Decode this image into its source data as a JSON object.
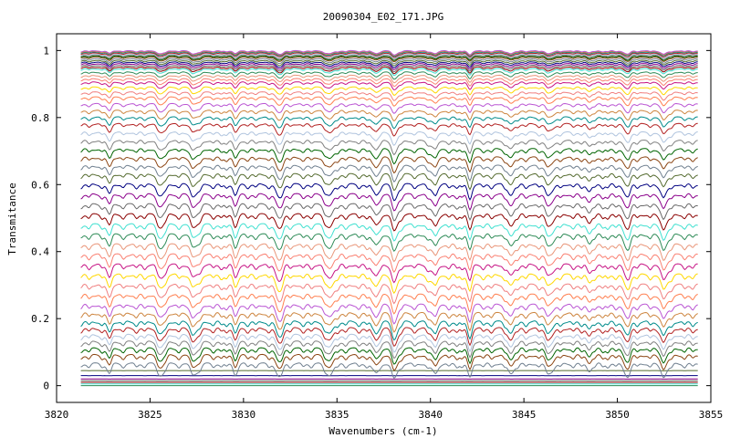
{
  "chart_data": {
    "type": "line",
    "title": "20090304_E02_171.JPG",
    "xlabel": "Wavenumbers (cm-1)",
    "ylabel": "Transmitance",
    "xlim": [
      3820,
      3855
    ],
    "ylim": [
      -0.05,
      1.05
    ],
    "x_ticks": [
      3820,
      3825,
      3830,
      3835,
      3840,
      3845,
      3850,
      3855
    ],
    "y_ticks": [
      0,
      0.2,
      0.4,
      0.6,
      0.8,
      1
    ],
    "grid": false,
    "legend": "none",
    "x_data_range": [
      3821.3,
      3854.3
    ],
    "absorption_lines": [
      3822.8,
      3825.6,
      3827.4,
      3829.6,
      3831.9,
      3834.6,
      3837.1,
      3838.1,
      3840.2,
      3842.1,
      3844.3,
      3846.4,
      3848.5,
      3850.5,
      3852.5
    ],
    "series_levels": [
      0.0,
      0.005,
      0.01,
      0.015,
      0.02,
      0.03,
      0.045,
      0.065,
      0.09,
      0.11,
      0.13,
      0.15,
      0.17,
      0.19,
      0.215,
      0.24,
      0.27,
      0.3,
      0.33,
      0.36,
      0.39,
      0.42,
      0.45,
      0.48,
      0.51,
      0.54,
      0.57,
      0.6,
      0.63,
      0.655,
      0.68,
      0.705,
      0.73,
      0.755,
      0.78,
      0.8,
      0.82,
      0.84,
      0.86,
      0.875,
      0.89,
      0.905,
      0.915,
      0.925,
      0.935,
      0.945,
      0.95,
      0.955,
      0.96,
      0.965,
      0.97,
      0.975,
      0.98,
      0.983,
      0.986,
      0.989,
      0.992,
      0.995,
      0.997,
      0.999
    ],
    "colors": [
      "#2e8b57",
      "#40e0d0",
      "#8b0000",
      "#696969",
      "#8b008b",
      "#000080",
      "#556b2f",
      "#708090",
      "#8b4513",
      "#006400",
      "#808080",
      "#b0c4de",
      "#b22222",
      "#008b8b",
      "#cd853f",
      "#ba55d3",
      "#ff7f50",
      "#f08080",
      "#ffd700",
      "#c71585",
      "#fa8072",
      "#e9967a"
    ]
  }
}
